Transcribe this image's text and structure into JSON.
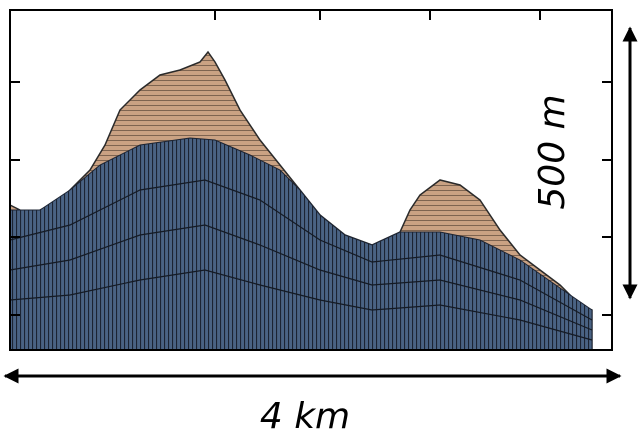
{
  "labels": {
    "vertical": "500 m",
    "horizontal": "4 km"
  }
}
